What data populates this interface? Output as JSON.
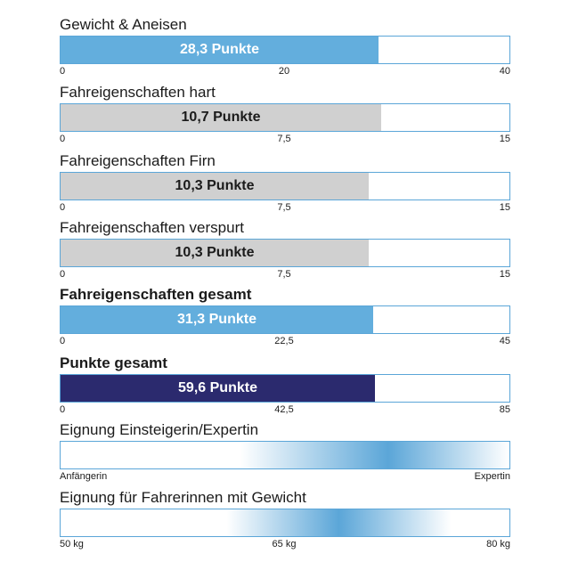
{
  "chart_data": {
    "type": "bar",
    "bars": [
      {
        "title": "Gewicht & Aneisen",
        "label": "28,3 Punkte",
        "value": 28.3,
        "max": 40,
        "ticks": [
          "0",
          "20",
          "40"
        ],
        "color": "#63aedd",
        "text_color": "#ffffff",
        "bold_title": false
      },
      {
        "title": "Fahreigenschaften hart",
        "label": "10,7 Punkte",
        "value": 10.7,
        "max": 15,
        "ticks": [
          "0",
          "7,5",
          "15"
        ],
        "color": "#d0d0d0",
        "text_color": "#1b1b1b",
        "bold_title": false
      },
      {
        "title": "Fahreigenschaften Firn",
        "label": "10,3 Punkte",
        "value": 10.3,
        "max": 15,
        "ticks": [
          "0",
          "7,5",
          "15"
        ],
        "color": "#d0d0d0",
        "text_color": "#1b1b1b",
        "bold_title": false
      },
      {
        "title": "Fahreigenschaften verspurt",
        "label": "10,3 Punkte",
        "value": 10.3,
        "max": 15,
        "ticks": [
          "0",
          "7,5",
          "15"
        ],
        "color": "#d0d0d0",
        "text_color": "#1b1b1b",
        "bold_title": false
      },
      {
        "title": "Fahreigenschaften gesamt",
        "label": "31,3 Punkte",
        "value": 31.3,
        "max": 45,
        "ticks": [
          "0",
          "22,5",
          "45"
        ],
        "color": "#63aedd",
        "text_color": "#ffffff",
        "bold_title": true
      },
      {
        "title": "Punkte gesamt",
        "label": "59,6 Punkte",
        "value": 59.6,
        "max": 85,
        "ticks": [
          "0",
          "42,5",
          "85"
        ],
        "color": "#2b2a6e",
        "text_color": "#ffffff",
        "bold_title": true
      }
    ],
    "gradients": [
      {
        "title": "Eignung Einsteigerin/Expertin",
        "ticks": [
          "Anfängerin",
          "Expertin"
        ],
        "peak": 0.73,
        "spread": 0.33
      },
      {
        "title": "Eignung für Fahrerinnen mit Gewicht",
        "ticks": [
          "50 kg",
          "65 kg",
          "80 kg"
        ],
        "peak": 0.62,
        "spread": 0.25
      }
    ],
    "gradient_color": "#5ba6d8"
  }
}
